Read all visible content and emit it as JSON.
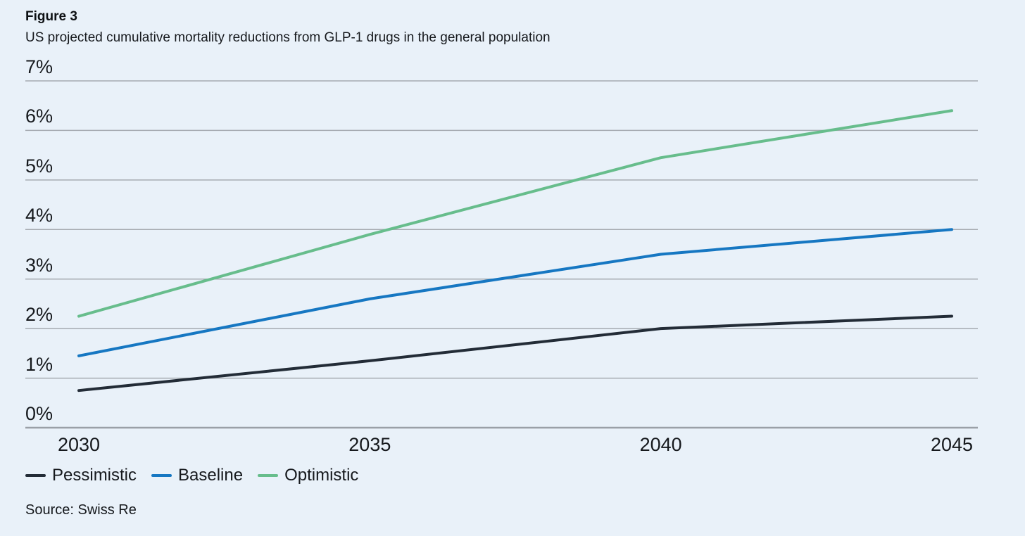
{
  "figure": {
    "label": "Figure 3",
    "title": "US projected cumulative mortality reductions from GLP-1 drugs in the general population",
    "source": "Source: Swiss Re"
  },
  "colors": {
    "background": "#e9f1f9",
    "gridline": "#a6abb1",
    "axis_line": "#9aa0a7",
    "text": "#16191d",
    "pessimistic": "#232c37",
    "baseline": "#1677c2",
    "optimistic": "#67bd8c"
  },
  "chart_data": {
    "type": "line",
    "title": "US projected cumulative mortality reductions from GLP-1 drugs in the general population",
    "xlabel": "",
    "ylabel": "",
    "x_range": [
      2030,
      2045
    ],
    "ylim": [
      0,
      7
    ],
    "grid": true,
    "legend_position": "bottom-left",
    "y_ticks": [
      {
        "value": 7,
        "label": "7%"
      },
      {
        "value": 6,
        "label": "6%"
      },
      {
        "value": 5,
        "label": "5%"
      },
      {
        "value": 4,
        "label": "4%"
      },
      {
        "value": 3,
        "label": "3%"
      },
      {
        "value": 2,
        "label": "2%"
      },
      {
        "value": 1,
        "label": "1%"
      },
      {
        "value": 0,
        "label": "0%"
      }
    ],
    "x_ticks": [
      {
        "value": 2030,
        "label": "2030"
      },
      {
        "value": 2035,
        "label": "2035"
      },
      {
        "value": 2040,
        "label": "2040"
      },
      {
        "value": 2045,
        "label": "2045"
      }
    ],
    "x": [
      2030,
      2035,
      2040,
      2045
    ],
    "series": [
      {
        "name": "Pessimistic",
        "color": "#232c37",
        "values": [
          0.75,
          1.35,
          2.0,
          2.25
        ]
      },
      {
        "name": "Baseline",
        "color": "#1677c2",
        "values": [
          1.45,
          2.6,
          3.5,
          4.0
        ]
      },
      {
        "name": "Optimistic",
        "color": "#67bd8c",
        "values": [
          2.25,
          3.9,
          5.45,
          6.4
        ]
      }
    ]
  }
}
